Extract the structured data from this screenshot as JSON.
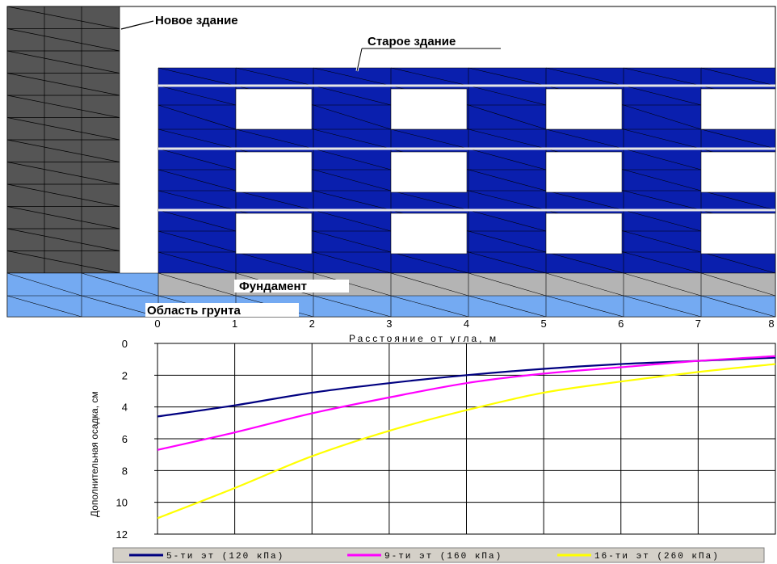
{
  "labels": {
    "new_building": "Новое здание",
    "old_building": "Старое здание",
    "foundation": "Фундамент",
    "soil": "Область грунта"
  },
  "chart_data": {
    "type": "line",
    "title": "",
    "xlabel": "Расстояние от угла, м",
    "ylabel": "Дополнительная осадка, см",
    "xlim": [
      0,
      8
    ],
    "ylim": [
      12,
      0
    ],
    "y_inverted": true,
    "x_ticks": [
      "0",
      "1",
      "2",
      "3",
      "4",
      "5",
      "6",
      "7",
      "8"
    ],
    "y_ticks": [
      "0",
      "2",
      "4",
      "6",
      "8",
      "10",
      "12"
    ],
    "grid": true,
    "legend": "bottom",
    "series": [
      {
        "name": "5-ти эт (120 кПа)",
        "color": "#000080",
        "x": [
          0,
          1,
          2,
          3,
          4,
          5,
          6,
          7,
          8
        ],
        "y": [
          4.6,
          3.9,
          3.1,
          2.5,
          2.0,
          1.6,
          1.3,
          1.1,
          0.9
        ]
      },
      {
        "name": "9-ти эт (160 кПа)",
        "color": "#ff00ff",
        "x": [
          0,
          1,
          2,
          3,
          4,
          5,
          6,
          7,
          8
        ],
        "y": [
          6.7,
          5.6,
          4.4,
          3.4,
          2.5,
          1.9,
          1.5,
          1.1,
          0.8
        ]
      },
      {
        "name": "16-ти эт (260 кПа)",
        "color": "#ffff00",
        "x": [
          0,
          1,
          2,
          3,
          4,
          5,
          6,
          7,
          8
        ],
        "y": [
          11.0,
          9.1,
          7.1,
          5.5,
          4.2,
          3.1,
          2.4,
          1.8,
          1.3
        ]
      }
    ]
  }
}
